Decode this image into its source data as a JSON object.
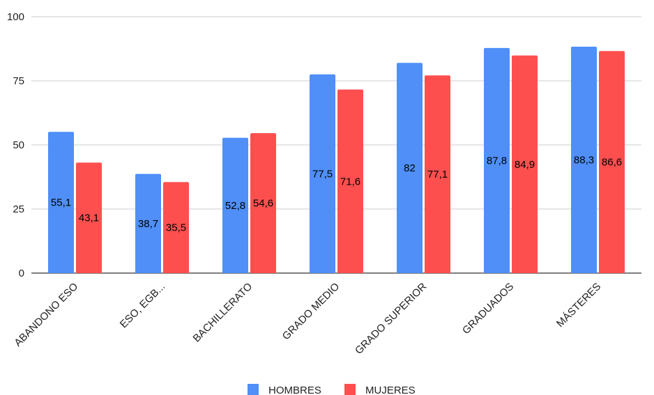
{
  "chart_data": {
    "type": "bar",
    "categories": [
      "ABANDONO ESO",
      "ESO, EGB...",
      "BACHILLERATO",
      "GRADO MEDIO",
      "GRADO SUPERIOR",
      "GRADUADOS",
      "MÁSTERES"
    ],
    "series": [
      {
        "name": "HOMBRES",
        "color": "#4f8ff7",
        "values": [
          55.1,
          38.7,
          52.8,
          77.5,
          82,
          87.8,
          88.3
        ],
        "labels": [
          "55,1",
          "38,7",
          "52,8",
          "77,5",
          "82",
          "87,8",
          "88,3"
        ]
      },
      {
        "name": "MUJERES",
        "color": "#fe4f4f",
        "values": [
          43.1,
          35.5,
          54.6,
          71.6,
          77.1,
          84.9,
          86.6
        ],
        "labels": [
          "43,1",
          "35,5",
          "54,6",
          "71,6",
          "77,1",
          "84,9",
          "86,6"
        ]
      }
    ],
    "ylim": [
      0,
      100
    ],
    "yticks": [
      0,
      25,
      50,
      75,
      100
    ],
    "grid": true,
    "legend_position": "bottom",
    "title": "",
    "xlabel": "",
    "ylabel": ""
  }
}
